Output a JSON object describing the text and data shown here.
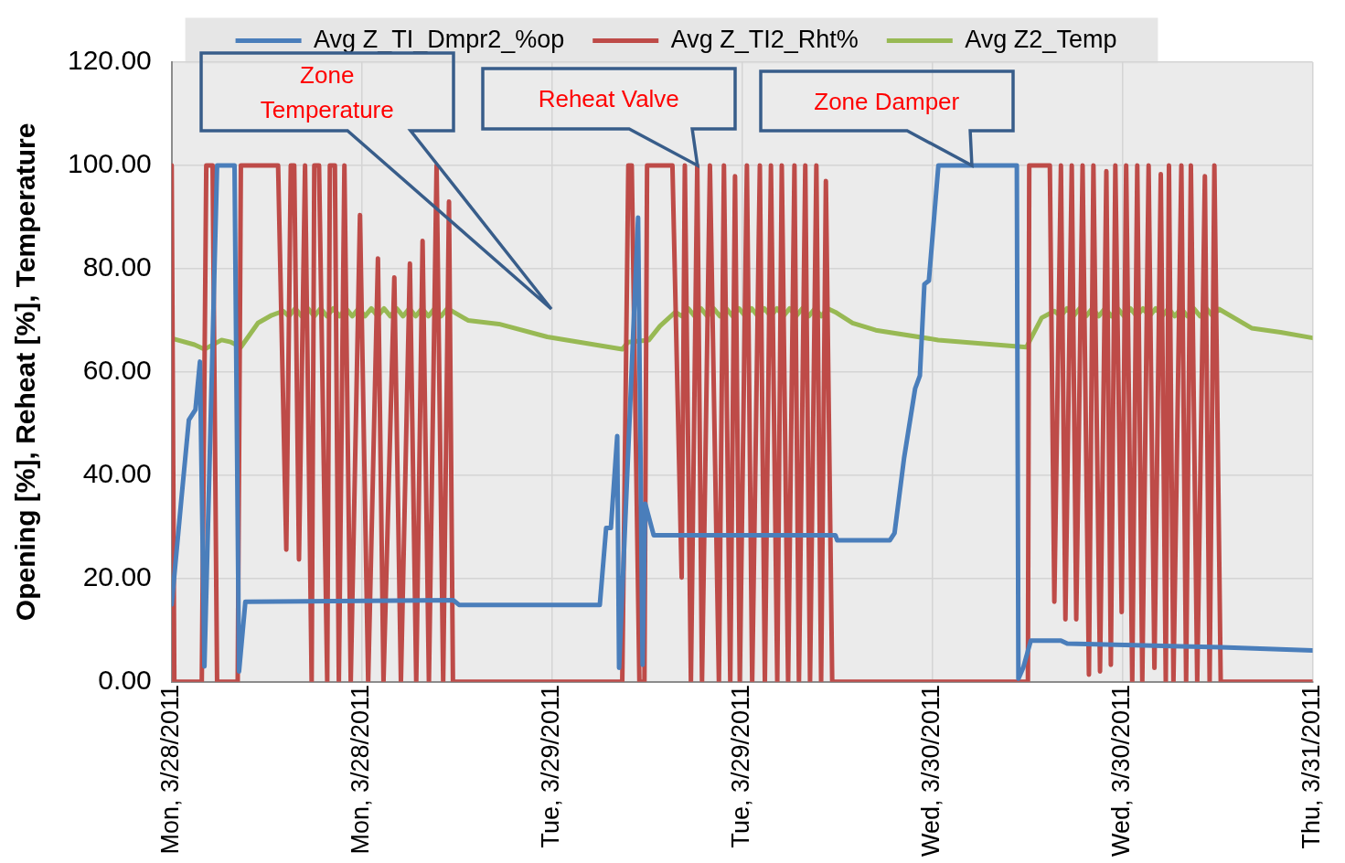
{
  "chart_data": {
    "type": "line",
    "ylabel": "Opening [%], Reheat [%], Temperature",
    "legend": "top",
    "grid": true,
    "marker": "none",
    "line_style": "solid",
    "xlim": [
      "2011-03-28T00:00",
      "2011-03-31T00:00"
    ],
    "xticks": [
      {
        "value": "2011-03-28T00:00",
        "label": "Mon, 3/28/2011"
      },
      {
        "value": "2011-03-28T12:00",
        "label": "Mon, 3/28/2011"
      },
      {
        "value": "2011-03-29T00:00",
        "label": "Tue, 3/29/2011"
      },
      {
        "value": "2011-03-29T12:00",
        "label": "Tue, 3/29/2011"
      },
      {
        "value": "2011-03-30T00:00",
        "label": "Wed, 3/30/2011"
      },
      {
        "value": "2011-03-30T12:00",
        "label": "Wed, 3/30/2011"
      },
      {
        "value": "2011-03-31T00:00",
        "label": "Thu, 3/31/2011"
      }
    ],
    "ylim": [
      0,
      120
    ],
    "yticks": [
      {
        "value": 0,
        "label": "0.00"
      },
      {
        "value": 20,
        "label": "20.00"
      },
      {
        "value": 40,
        "label": "40.00"
      },
      {
        "value": 60,
        "label": "60.00"
      },
      {
        "value": 80,
        "label": "80.00"
      },
      {
        "value": 100,
        "label": "100.00"
      },
      {
        "value": 120,
        "label": "120.00"
      }
    ],
    "annotations": [
      "Zone Temperature",
      {
        "text": "Reheat Valve",
        "x": "2011-03-29T09:10",
        "y": 100
      },
      {
        "text": "Zone Damper",
        "x": "2011-03-30T02:29",
        "y": 100
      }
    ],
    "series": [
      {
        "name": "Avg Z_TI_Dmpr2_%op",
        "color": "#4a7ebb",
        "x": [
          "2011-03-28T00:00",
          "2011-03-28T00:36",
          "2011-03-28T01:05",
          "2011-03-28T01:30",
          "2011-03-28T01:47",
          "2011-03-28T02:04",
          "2011-03-28T02:52",
          "2011-03-28T03:58",
          "2011-03-28T04:15",
          "2011-03-28T04:39",
          "2011-03-28T17:47",
          "2011-03-28T18:08",
          "2011-03-29T03:01",
          "2011-03-29T03:25",
          "2011-03-29T03:43",
          "2011-03-29T04:07",
          "2011-03-29T04:14",
          "2011-03-29T05:26",
          "2011-03-29T05:43",
          "2011-03-29T05:53",
          "2011-03-29T06:25",
          "2011-03-29T17:53",
          "2011-03-29T18:00",
          "2011-03-29T21:19",
          "2011-03-29T21:37",
          "2011-03-29T22:13",
          "2011-03-29T22:55",
          "2011-03-29T23:13",
          "2011-03-29T23:30",
          "2011-03-29T23:47",
          "2011-03-30T00:23",
          "2011-03-30T05:20",
          "2011-03-30T05:26",
          "2011-03-30T05:44",
          "2011-03-30T06:13",
          "2011-03-30T08:07",
          "2011-03-30T08:31",
          "2011-03-30T18:13",
          "2011-03-31T00:00"
        ],
        "values": [
          15,
          35,
          50.7,
          52.7,
          62,
          3,
          100,
          100,
          2,
          15.5,
          15.8,
          14.9,
          14.9,
          29.8,
          29.8,
          47.6,
          2.7,
          89.9,
          3.3,
          34.5,
          28.4,
          28.4,
          27.4,
          27.4,
          28.8,
          43.3,
          56.8,
          59.3,
          77,
          77.7,
          100,
          100,
          0.6,
          2.7,
          8,
          8,
          7.4,
          6.7,
          6.1
        ]
      },
      {
        "name": "Avg Z_TI2_Rht%",
        "color": "#be4b48",
        "x": [
          "2011-03-28T00:00",
          "2011-03-28T00:10",
          "2011-03-28T01:54",
          "2011-03-28T02:11",
          "2011-03-28T02:35",
          "2011-03-28T02:52",
          "2011-03-28T04:10",
          "2011-03-28T04:22",
          "2011-03-28T06:43",
          "2011-03-28T07:14",
          "2011-03-28T07:31",
          "2011-03-28T07:44",
          "2011-03-28T08:02",
          "2011-03-28T08:25",
          "2011-03-28T08:50",
          "2011-03-28T09:00",
          "2011-03-28T09:18",
          "2011-03-28T09:49",
          "2011-03-28T09:59",
          "2011-03-28T10:18",
          "2011-03-28T10:33",
          "2011-03-28T10:54",
          "2011-03-28T11:18",
          "2011-03-28T11:53",
          "2011-03-28T12:24",
          "2011-03-28T13:01",
          "2011-03-28T13:22",
          "2011-03-28T14:03",
          "2011-03-28T14:28",
          "2011-03-28T15:02",
          "2011-03-28T15:26",
          "2011-03-28T15:50",
          "2011-03-28T16:14",
          "2011-03-28T16:43",
          "2011-03-28T17:08",
          "2011-03-28T17:30",
          "2011-03-28T17:45",
          "2011-03-29T04:26",
          "2011-03-29T04:49",
          "2011-03-29T05:02",
          "2011-03-29T05:31",
          "2011-03-29T05:50",
          "2011-03-29T06:00",
          "2011-03-29T07:36",
          "2011-03-29T08:11",
          "2011-03-29T08:23",
          "2011-03-29T08:46",
          "2011-03-29T09:10",
          "2011-03-29T09:28",
          "2011-03-29T09:58",
          "2011-03-29T10:32",
          "2011-03-29T10:51",
          "2011-03-29T11:15",
          "2011-03-29T11:33",
          "2011-03-29T11:51",
          "2011-03-29T12:18",
          "2011-03-29T12:38",
          "2011-03-29T13:07",
          "2011-03-29T13:26",
          "2011-03-29T13:49",
          "2011-03-29T14:13",
          "2011-03-29T14:30",
          "2011-03-29T14:54",
          "2011-03-29T15:18",
          "2011-03-29T15:35",
          "2011-03-29T15:59",
          "2011-03-29T16:17",
          "2011-03-29T16:41",
          "2011-03-29T16:59",
          "2011-03-29T17:17",
          "2011-03-29T17:41",
          "2011-03-30T06:02",
          "2011-03-30T06:07",
          "2011-03-30T07:25",
          "2011-03-30T07:42",
          "2011-03-30T08:07",
          "2011-03-30T08:24",
          "2011-03-30T08:48",
          "2011-03-30T09:05",
          "2011-03-30T09:29",
          "2011-03-30T09:53",
          "2011-03-30T10:10",
          "2011-03-30T10:35",
          "2011-03-30T10:59",
          "2011-03-30T11:16",
          "2011-03-30T11:33",
          "2011-03-30T11:57",
          "2011-03-30T12:14",
          "2011-03-30T12:37",
          "2011-03-30T12:56",
          "2011-03-30T13:15",
          "2011-03-30T13:39",
          "2011-03-30T14:01",
          "2011-03-30T14:25",
          "2011-03-30T14:44",
          "2011-03-30T14:56",
          "2011-03-30T15:13",
          "2011-03-30T15:43",
          "2011-03-30T16:01",
          "2011-03-30T16:19",
          "2011-03-30T16:43",
          "2011-03-30T17:12",
          "2011-03-30T17:30",
          "2011-03-30T17:48",
          "2011-03-30T18:12",
          "2011-03-31T00:00"
        ],
        "values": [
          100,
          0,
          0,
          100,
          100,
          0,
          0,
          100,
          100,
          25.6,
          100,
          100,
          23.7,
          100,
          0,
          100,
          100,
          0,
          100,
          100,
          0,
          100,
          0,
          90.4,
          0,
          82,
          0,
          78.3,
          0,
          81,
          0,
          85.4,
          0,
          100,
          0,
          93,
          0,
          0,
          100,
          100,
          0,
          0,
          100,
          100,
          20.2,
          100,
          0,
          100,
          0,
          100,
          0,
          100,
          0,
          97.9,
          0,
          100,
          0,
          100,
          0,
          100,
          0,
          100,
          0,
          100,
          0,
          100,
          0,
          100,
          0,
          97,
          0,
          0,
          100,
          100,
          15.5,
          100,
          12.1,
          100,
          12.1,
          100,
          1.4,
          100,
          2,
          98.9,
          3.3,
          100,
          13.5,
          100,
          0,
          100,
          0,
          100,
          2.7,
          98.3,
          0,
          100,
          0,
          100,
          0,
          100,
          0,
          97.9,
          0,
          100,
          0,
          0
        ]
      },
      {
        "name": "Avg Z2_Temp",
        "color": "#98b954",
        "x": [
          "2011-03-28T00:00",
          "2011-03-28T01:26",
          "2011-03-28T02:04",
          "2011-03-28T03:09",
          "2011-03-28T03:44",
          "2011-03-28T04:22",
          "2011-03-28T05:27",
          "2011-03-28T06:19",
          "2011-03-28T07:02",
          "2011-03-28T07:24",
          "2011-03-28T07:48",
          "2011-03-28T08:12",
          "2011-03-28T08:36",
          "2011-03-28T09:00",
          "2011-03-28T09:24",
          "2011-03-28T09:48",
          "2011-03-28T10:12",
          "2011-03-28T10:36",
          "2011-03-28T11:00",
          "2011-03-28T11:24",
          "2011-03-28T11:48",
          "2011-03-28T12:12",
          "2011-03-28T12:36",
          "2011-03-28T13:00",
          "2011-03-28T13:24",
          "2011-03-28T13:48",
          "2011-03-28T14:12",
          "2011-03-28T14:36",
          "2011-03-28T15:00",
          "2011-03-28T15:24",
          "2011-03-28T15:48",
          "2011-03-28T16:12",
          "2011-03-28T16:36",
          "2011-03-28T17:00",
          "2011-03-28T17:24",
          "2011-03-28T17:48",
          "2011-03-28T18:42",
          "2011-03-28T20:39",
          "2011-03-28T23:42",
          "2011-03-29T04:26",
          "2011-03-29T04:48",
          "2011-03-29T06:07",
          "2011-03-29T06:49",
          "2011-03-29T07:47",
          "2011-03-29T08:12",
          "2011-03-29T08:36",
          "2011-03-29T09:00",
          "2011-03-29T09:24",
          "2011-03-29T09:48",
          "2011-03-29T10:12",
          "2011-03-29T10:36",
          "2011-03-29T11:00",
          "2011-03-29T11:24",
          "2011-03-29T11:48",
          "2011-03-29T12:12",
          "2011-03-29T12:36",
          "2011-03-29T13:00",
          "2011-03-29T13:24",
          "2011-03-29T13:48",
          "2011-03-29T14:12",
          "2011-03-29T14:36",
          "2011-03-29T15:00",
          "2011-03-29T15:24",
          "2011-03-29T15:48",
          "2011-03-29T16:12",
          "2011-03-29T16:36",
          "2011-03-29T17:00",
          "2011-03-29T17:24",
          "2011-03-29T17:53",
          "2011-03-29T18:58",
          "2011-03-29T20:26",
          "2011-03-30T00:22",
          "2011-03-30T05:56",
          "2011-03-30T06:54",
          "2011-03-30T07:42",
          "2011-03-30T08:06",
          "2011-03-30T08:30",
          "2011-03-30T08:54",
          "2011-03-30T09:18",
          "2011-03-30T09:42",
          "2011-03-30T10:06",
          "2011-03-30T10:30",
          "2011-03-30T10:54",
          "2011-03-30T11:18",
          "2011-03-30T11:42",
          "2011-03-30T12:06",
          "2011-03-30T12:30",
          "2011-03-30T12:54",
          "2011-03-30T13:18",
          "2011-03-30T13:42",
          "2011-03-30T14:06",
          "2011-03-30T14:30",
          "2011-03-30T14:54",
          "2011-03-30T15:18",
          "2011-03-30T15:42",
          "2011-03-30T16:06",
          "2011-03-30T16:30",
          "2011-03-30T16:54",
          "2011-03-30T17:18",
          "2011-03-30T17:42",
          "2011-03-30T18:05",
          "2011-03-30T20:09",
          "2011-03-30T21:59",
          "2011-03-31T00:00"
        ],
        "values": [
          66.5,
          65.3,
          64.4,
          66.2,
          65.8,
          64.8,
          69.5,
          71,
          71.8,
          70.8,
          72.3,
          70.8,
          72.3,
          70.8,
          72.3,
          70.8,
          72.3,
          70.8,
          72.3,
          70.8,
          72.3,
          70.8,
          72.3,
          70.8,
          72.3,
          70.8,
          72.3,
          70.8,
          72.3,
          70.8,
          72.3,
          70.8,
          72.3,
          70.8,
          72.3,
          71.6,
          70,
          69.3,
          66.8,
          64.4,
          65.8,
          66.2,
          68.9,
          71.6,
          70.8,
          72.3,
          70.8,
          72.3,
          70.8,
          72.3,
          70.8,
          72.3,
          70.8,
          72.3,
          70.8,
          72.3,
          70.8,
          72.3,
          70.8,
          72.3,
          70.8,
          72.3,
          70.8,
          72.3,
          70.8,
          72.3,
          70.8,
          72.3,
          71.6,
          69.5,
          68.1,
          66.2,
          64.8,
          70.5,
          71.8,
          70.8,
          72.3,
          70.8,
          72.3,
          70.8,
          72.3,
          70.8,
          72.3,
          70.8,
          72.3,
          70.8,
          72.3,
          70.8,
          72.3,
          70.8,
          72.3,
          70.8,
          72.3,
          70.8,
          72.3,
          70.8,
          72.3,
          70.8,
          72.3,
          70.8,
          72.2,
          68.5,
          67.7,
          66.6
        ]
      }
    ]
  }
}
